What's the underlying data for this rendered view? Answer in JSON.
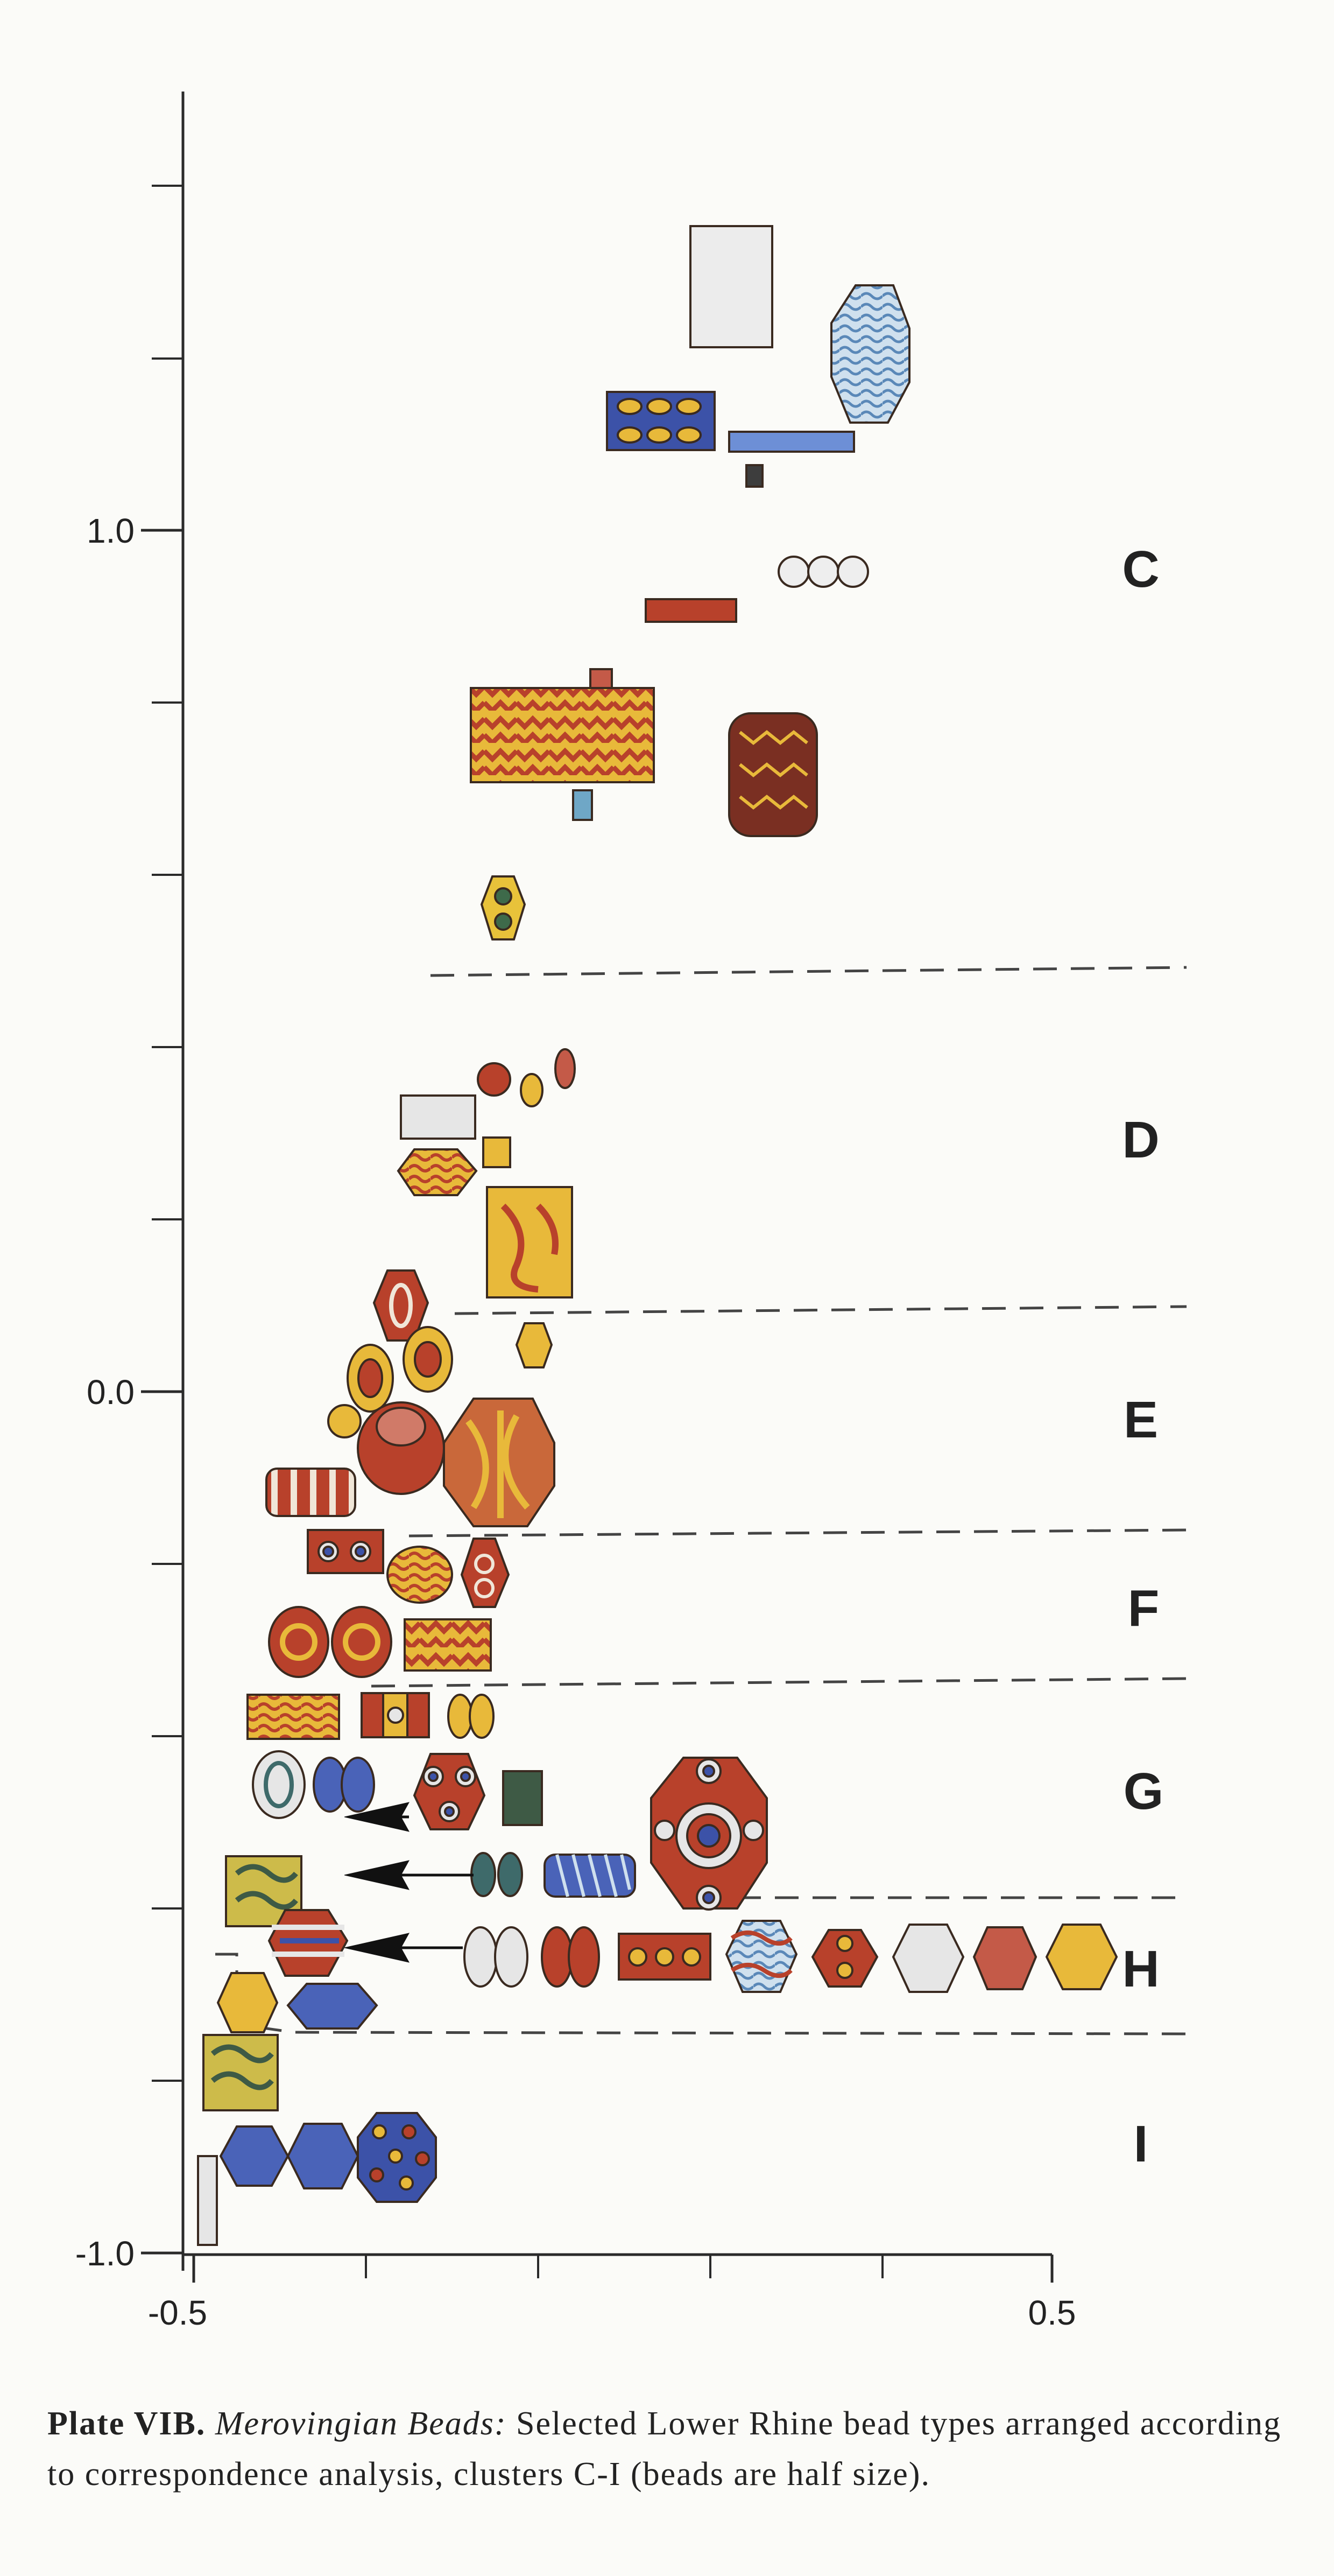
{
  "y_axis": {
    "tick_labels": [
      "1.0",
      "0.0",
      "-1.0"
    ],
    "tick_values": [
      1.0,
      0.0,
      -1.0
    ],
    "range": [
      -1.0,
      1.5
    ]
  },
  "x_axis": {
    "tick_labels": [
      "-0.5",
      "0.5"
    ],
    "tick_values": [
      -0.5,
      0.5
    ],
    "range": [
      -0.5,
      0.5
    ]
  },
  "clusters": [
    {
      "label": "C"
    },
    {
      "label": "D"
    },
    {
      "label": "E"
    },
    {
      "label": "F"
    },
    {
      "label": "G"
    },
    {
      "label": "H"
    },
    {
      "label": "I"
    }
  ],
  "caption": {
    "plate": "Plate VIB.",
    "title": "Merovingian Beads:",
    "text": " Selected Lower Rhine bead types arranged according to correspondence analysis, clusters C-I (beads are half size)."
  },
  "colors": {
    "axis": "#2a2a2a",
    "dash": "#444444",
    "bead_red": "#b8412b",
    "bead_yellow": "#e8b93a",
    "bead_blue": "#4a63b8",
    "bead_white": "#e6e6e6",
    "bead_green": "#3e5a45"
  }
}
